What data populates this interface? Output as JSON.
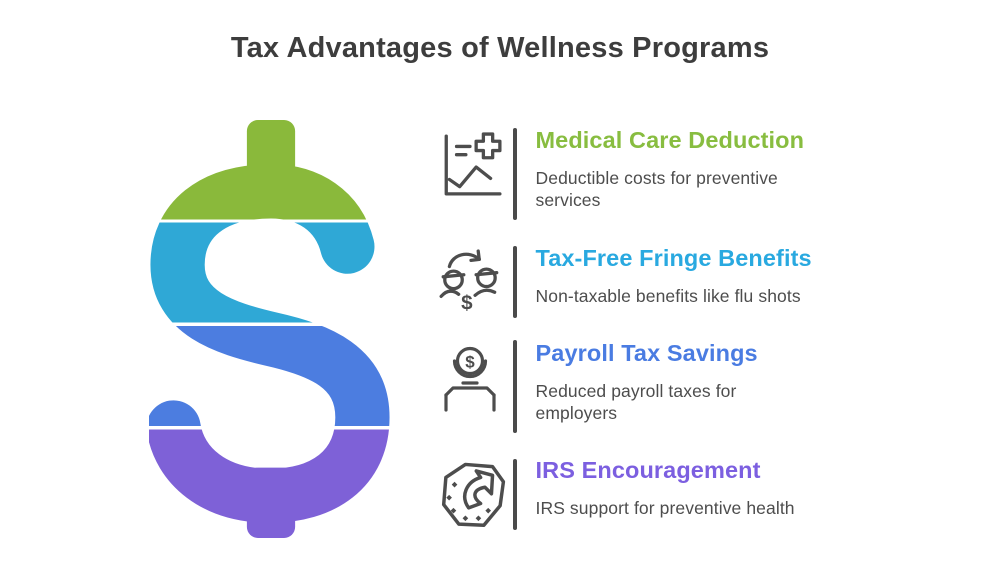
{
  "page": {
    "title": "Tax Advantages of Wellness Programs"
  },
  "colors": {
    "background": "#ffffff",
    "heading_text": "#3d3d3d",
    "body_text": "#4d4d4d",
    "icon_stroke": "#4d4d4d",
    "divider": "#4a4a4a",
    "separator": "#ffffff"
  },
  "dollar_sign": {
    "symbol": "$",
    "segments": [
      {
        "label": "green",
        "color": "#8ab93b"
      },
      {
        "label": "cyan",
        "color": "#2fa8d6"
      },
      {
        "label": "blue",
        "color": "#4c7de0"
      },
      {
        "label": "purple",
        "color": "#7e61d7"
      }
    ]
  },
  "items": [
    {
      "title": "Medical Care Deduction",
      "title_color": "#88bd40",
      "description": "Deductible costs for preventive\nservices",
      "icon": "medical-chart-plus-icon"
    },
    {
      "title": "Tax-Free Fringe Benefits",
      "title_color": "#29a9e0",
      "description": "Non-taxable benefits like flu shots",
      "icon": "coins-transfer-icon"
    },
    {
      "title": "Payroll Tax Savings",
      "title_color": "#4a7ce2",
      "description": "Reduced payroll taxes for\nemployers",
      "icon": "coin-donation-box-icon"
    },
    {
      "title": "IRS Encouragement",
      "title_color": "#7c5fe0",
      "description": "IRS support for preventive health",
      "icon": "arrow-ticket-icon"
    }
  ]
}
